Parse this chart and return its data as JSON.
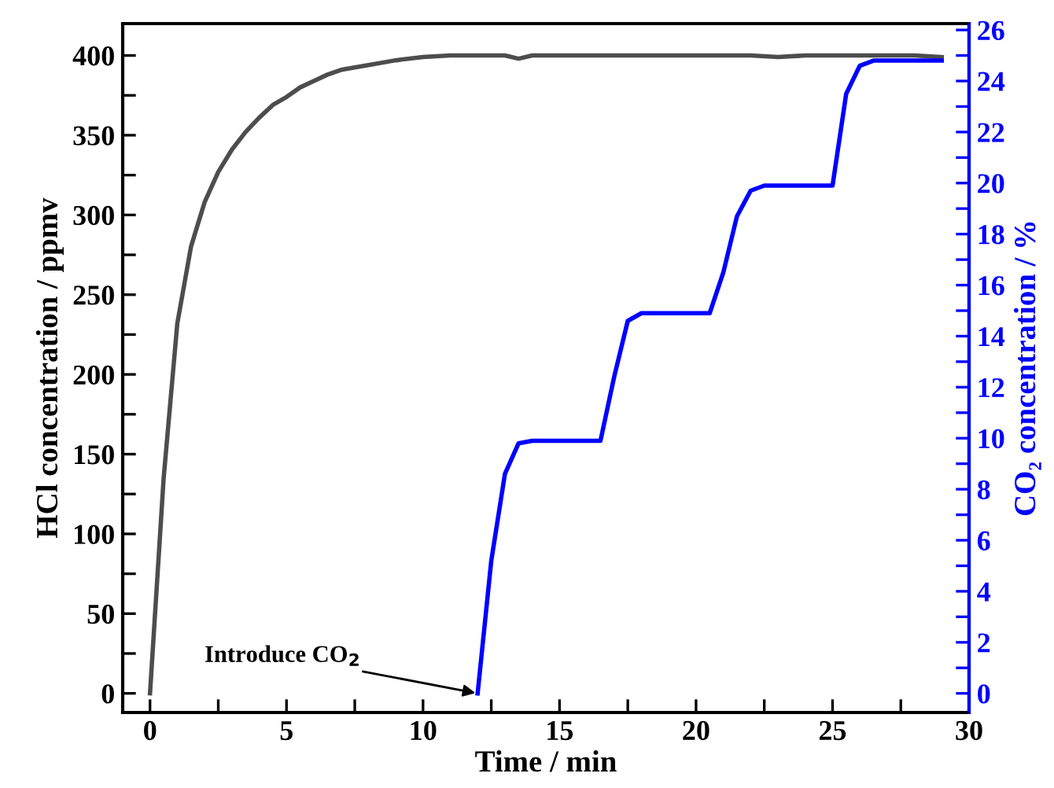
{
  "chart_data": {
    "type": "line",
    "xlabel": "Time / min",
    "ylabel": "HCl concentration / ppmv",
    "y2label": "CO₂ concentration / %",
    "xlim": [
      -1,
      30
    ],
    "xticks": [
      0,
      {
        "value": 2.5,
        "label": null
      },
      5,
      {
        "value": 7.5,
        "label": null
      },
      10,
      {
        "value": 12.5,
        "label": null
      },
      15,
      {
        "value": 17.5,
        "label": null
      },
      20,
      {
        "value": 22.5,
        "label": null
      },
      25,
      {
        "value": 27.5,
        "label": null
      },
      30
    ],
    "ylim": [
      -12,
      420
    ],
    "yticks": [
      0,
      {
        "value": 25,
        "label": null
      },
      50,
      {
        "value": 75,
        "label": null
      },
      100,
      {
        "value": 125,
        "label": null
      },
      150,
      {
        "value": 175,
        "label": null
      },
      200,
      {
        "value": 225,
        "label": null
      },
      250,
      {
        "value": 275,
        "label": null
      },
      300,
      {
        "value": 325,
        "label": null
      },
      350,
      {
        "value": 375,
        "label": null
      },
      400
    ],
    "y2lim": [
      -0.75,
      26.25
    ],
    "y2ticks": [
      0,
      {
        "value": 1,
        "label": null
      },
      2,
      {
        "value": 3,
        "label": null
      },
      4,
      {
        "value": 5,
        "label": null
      },
      6,
      {
        "value": 7,
        "label": null
      },
      8,
      {
        "value": 9,
        "label": null
      },
      10,
      {
        "value": 11,
        "label": null
      },
      12,
      {
        "value": 13,
        "label": null
      },
      14,
      {
        "value": 15,
        "label": null
      },
      16,
      {
        "value": 17,
        "label": null
      },
      18,
      {
        "value": 19,
        "label": null
      },
      20,
      {
        "value": 21,
        "label": null
      },
      22,
      {
        "value": 23,
        "label": null
      },
      24,
      {
        "value": 25,
        "label": null
      },
      26
    ],
    "grid": false,
    "legend": false,
    "series": [
      {
        "color": "#4d4d4d",
        "x": [
          0,
          0.5,
          1,
          1.5,
          2,
          2.5,
          3,
          3.5,
          4,
          4.5,
          5,
          5.5,
          6,
          6.5,
          7,
          8,
          9,
          10,
          11,
          12,
          13,
          13.5,
          14,
          16,
          18,
          20,
          22,
          23,
          24,
          25,
          26,
          27,
          28,
          29
        ],
        "values": [
          0,
          135,
          232,
          280,
          308,
          327,
          341,
          352,
          361,
          369,
          374,
          380,
          384,
          388,
          391,
          394,
          397,
          399,
          400,
          400,
          400,
          398,
          400,
          400,
          400,
          400,
          400,
          399,
          400,
          400,
          400,
          400,
          400,
          399
        ]
      },
      {
        "color": "#0000ff",
        "axis": "y2",
        "x": [
          12,
          12.5,
          13,
          13.5,
          14,
          15,
          16,
          16.5,
          17,
          17.5,
          18,
          19,
          20,
          20.5,
          21,
          21.5,
          22,
          22.5,
          23,
          24,
          25,
          25.5,
          26,
          26.5,
          27,
          28,
          29
        ],
        "values": [
          0,
          5.2,
          8.6,
          9.8,
          9.9,
          9.9,
          9.9,
          9.9,
          12.4,
          14.6,
          14.9,
          14.9,
          14.9,
          14.9,
          16.5,
          18.7,
          19.7,
          19.9,
          19.9,
          19.9,
          19.9,
          23.5,
          24.6,
          24.8,
          24.8,
          24.8,
          24.8
        ]
      }
    ],
    "annotations": [
      {
        "text": "Introduce CO$_{2}$",
        "x": 12,
        "y": 0
      }
    ]
  }
}
